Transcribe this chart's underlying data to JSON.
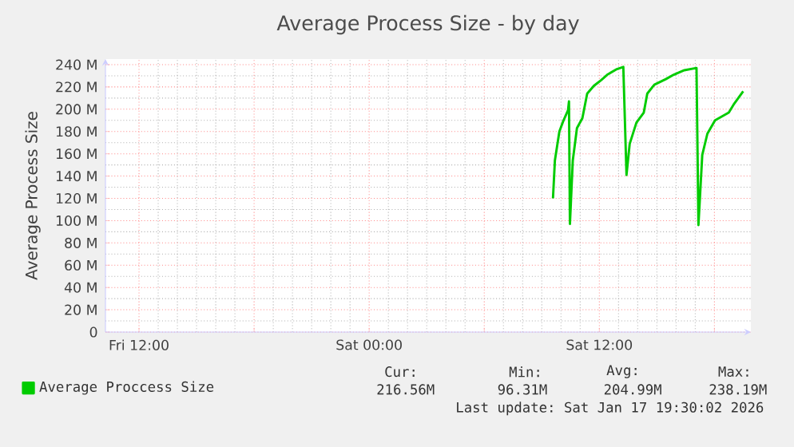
{
  "chart_data": {
    "type": "line",
    "title": "Average Process Size - by day",
    "ylabel": "Average Process Size",
    "x": [
      "2026-01-17T09:35",
      "2026-01-17T09:41",
      "2026-01-17T09:55",
      "2026-01-17T10:08",
      "2026-01-17T10:22",
      "2026-01-17T10:25",
      "2026-01-17T10:28",
      "2026-01-17T10:37",
      "2026-01-17T10:50",
      "2026-01-17T11:07",
      "2026-01-17T11:22",
      "2026-01-17T11:43",
      "2026-01-17T12:05",
      "2026-01-17T12:25",
      "2026-01-17T12:55",
      "2026-01-17T13:15",
      "2026-01-17T13:25",
      "2026-01-17T13:35",
      "2026-01-17T13:56",
      "2026-01-17T14:19",
      "2026-01-17T14:30",
      "2026-01-17T14:52",
      "2026-01-17T15:28",
      "2026-01-17T15:53",
      "2026-01-17T16:26",
      "2026-01-17T17:04",
      "2026-01-17T17:10",
      "2026-01-17T17:22",
      "2026-01-17T17:38",
      "2026-01-17T18:02",
      "2026-01-17T18:45",
      "2026-01-17T19:02",
      "2026-01-17T19:30"
    ],
    "series": [
      {
        "name": "Average Proccess Size",
        "color": "#00cc00",
        "values": [
          120,
          154,
          180,
          190,
          199,
          207,
          97,
          154,
          183,
          192,
          214,
          221,
          226,
          231,
          236,
          238,
          141,
          169,
          188,
          197,
          214,
          222,
          227,
          231,
          235,
          237,
          96,
          159,
          178,
          190,
          197,
          205,
          216
        ]
      }
    ],
    "xlim": [
      "2026-01-16T10:15",
      "2026-01-17T19:54"
    ],
    "ylim": [
      0,
      245
    ],
    "xticks": [
      {
        "value": "2026-01-16T12:00",
        "label": "Fri 12:00"
      },
      {
        "value": "2026-01-16T18:00",
        "label": null
      },
      {
        "value": "2026-01-17T00:00",
        "label": "Sat 00:00"
      },
      {
        "value": "2026-01-17T06:00",
        "label": null
      },
      {
        "value": "2026-01-17T12:00",
        "label": "Sat 12:00"
      },
      {
        "value": "2026-01-17T18:00",
        "label": null
      }
    ],
    "yticks": [
      0,
      {
        "value": 20,
        "label": "20 M"
      },
      {
        "value": 40,
        "label": "40 M"
      },
      {
        "value": 60,
        "label": "60 M"
      },
      {
        "value": 80,
        "label": "80 M"
      },
      {
        "value": 100,
        "label": "100 M"
      },
      {
        "value": 120,
        "label": "120 M"
      },
      {
        "value": 140,
        "label": "140 M"
      },
      {
        "value": 160,
        "label": "160 M"
      },
      {
        "value": 180,
        "label": "180 M"
      },
      {
        "value": 200,
        "label": "200 M"
      },
      {
        "value": 220,
        "label": "220 M"
      },
      {
        "value": 240,
        "label": "240 M"
      }
    ],
    "grid": true,
    "legend": "bottom",
    "marker": "none",
    "line_style": "solid",
    "annotations": [
      "Cur:",
      "Min:",
      "Avg:",
      "Max:",
      "216.56M",
      "96.31M",
      "204.99M",
      "238.19M",
      "Last update: Sat Jan 17 19:30:02 2026"
    ]
  }
}
